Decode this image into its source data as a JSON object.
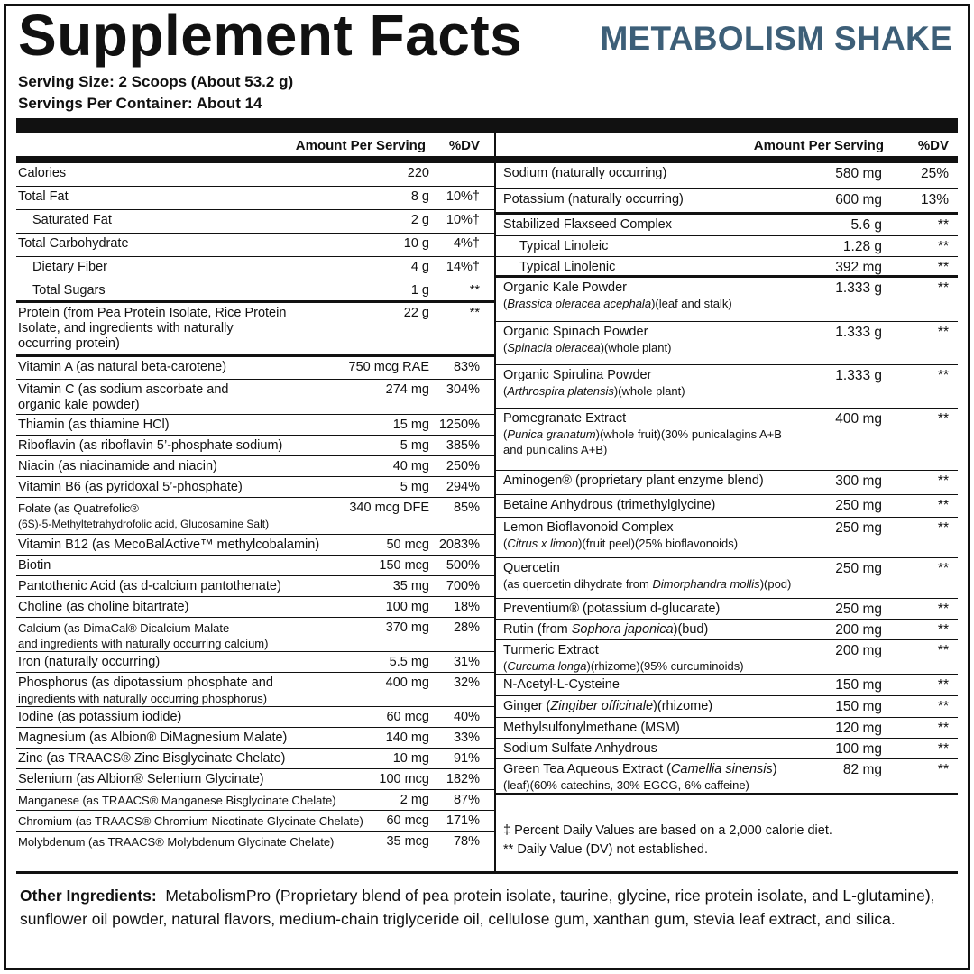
{
  "header": {
    "title": "Supplement Facts",
    "product": "METABOLISM SHAKE",
    "serving_size": "Serving Size: 2 Scoops (About 53.2 g)",
    "servings_per_container": "Servings Per Container: About 14"
  },
  "columns": {
    "amount": "Amount Per Serving",
    "dv": "%DV"
  },
  "left_rows": [
    {
      "name": "Calories",
      "amount": "220",
      "dv": ""
    },
    {
      "name": "Total Fat",
      "amount": "8 g",
      "dv": "10%†"
    },
    {
      "name": "Saturated Fat",
      "amount": "2 g",
      "dv": "10%†"
    },
    {
      "name": "Total Carbohydrate",
      "amount": "10 g",
      "dv": "4%†"
    },
    {
      "name": "Dietary Fiber",
      "amount": "4 g",
      "dv": "14%†"
    },
    {
      "name": "Total Sugars",
      "amount": "1 g",
      "dv": "**"
    },
    {
      "name": "Protein (from Pea Protein Isolate, Rice Protein",
      "name2": "Isolate, and ingredients with naturally",
      "name3": "occurring protein)",
      "amount": "22 g",
      "dv": "**"
    },
    {
      "name": "Vitamin A (as natural beta-carotene)",
      "amount": "750 mcg RAE",
      "dv": "83%"
    },
    {
      "name": "Vitamin C (as sodium ascorbate and",
      "name2": "organic kale powder)",
      "amount": "274 mg",
      "dv": "304%"
    },
    {
      "name": "Thiamin (as thiamine HCl)",
      "amount": "15 mg",
      "dv": "1250%"
    },
    {
      "name": "Riboflavin (as riboflavin 5’-phosphate sodium)",
      "amount": "5 mg",
      "dv": "385%"
    },
    {
      "name": "Niacin (as niacinamide and niacin)",
      "amount": "40 mg",
      "dv": "250%"
    },
    {
      "name": "Vitamin B6 (as pyridoxal 5’-phosphate)",
      "amount": "5 mg",
      "dv": "294%"
    },
    {
      "name": "Folate (as Quatrefolic®",
      "name2": "(6S)-5-Methyltetrahydrofolic acid, Glucosamine Salt)",
      "amount": "340 mcg DFE",
      "dv": "85%"
    },
    {
      "name": "Vitamin B12 (as MecoBalActive™ methylcobalamin)",
      "amount": "50 mcg",
      "dv": "2083%"
    },
    {
      "name": "Biotin",
      "amount": "150 mcg",
      "dv": "500%"
    },
    {
      "name": "Pantothenic Acid (as d-calcium pantothenate)",
      "amount": "35 mg",
      "dv": "700%"
    },
    {
      "name": "Choline (as choline bitartrate)",
      "amount": "100 mg",
      "dv": "18%"
    },
    {
      "name": "Calcium (as DimaCal® Dicalcium Malate",
      "name2": "and ingredients with naturally occurring calcium)",
      "amount": "370 mg",
      "dv": "28%"
    },
    {
      "name": "Iron (naturally occurring)",
      "amount": "5.5 mg",
      "dv": "31%"
    },
    {
      "name": "Phosphorus (as dipotassium phosphate and",
      "name2": "ingredients with naturally occurring phosphorus)",
      "amount": "400 mg",
      "dv": "32%"
    },
    {
      "name": "Iodine (as potassium iodide)",
      "amount": "60 mcg",
      "dv": "40%"
    },
    {
      "name": "Magnesium (as Albion® DiMagnesium Malate)",
      "amount": "140 mg",
      "dv": "33%"
    },
    {
      "name": "Zinc (as TRAACS® Zinc Bisglycinate Chelate)",
      "amount": "10 mg",
      "dv": "91%"
    },
    {
      "name": "Selenium (as Albion® Selenium Glycinate)",
      "amount": "100 mcg",
      "dv": "182%"
    },
    {
      "name": "Manganese (as TRAACS® Manganese Bisglycinate Chelate)",
      "amount": "2 mg",
      "dv": "87%"
    },
    {
      "name": "Chromium (as TRAACS® Chromium Nicotinate Glycinate Chelate)",
      "amount": "60 mcg",
      "dv": "171%"
    },
    {
      "name": "Molybdenum (as TRAACS® Molybdenum Glycinate Chelate)",
      "amount": "35 mcg",
      "dv": "78%"
    }
  ],
  "right_rows": [
    {
      "name": "Sodium (naturally occurring)",
      "amount": "580 mg",
      "dv": "25%"
    },
    {
      "name": "Potassium (naturally occurring)",
      "amount": "600 mg",
      "dv": "13%"
    },
    {
      "name": "Stabilized Flaxseed Complex",
      "amount": "5.6 g",
      "dv": "**"
    },
    {
      "name": "Typical Linoleic",
      "amount": "1.28 g",
      "dv": "**"
    },
    {
      "name": "Typical Linolenic",
      "amount": "392 mg",
      "dv": "**"
    },
    {
      "name": "Organic Kale Powder",
      "sub_i": "Brassica oleracea acephala",
      "sub_pre": "(",
      "sub_post": ")(leaf and stalk)",
      "amount": "1.333 g",
      "dv": "**"
    },
    {
      "name": "Organic Spinach Powder",
      "sub_i": "Spinacia oleracea",
      "sub_pre": "(",
      "sub_post": ")(whole plant)",
      "amount": "1.333 g",
      "dv": "**"
    },
    {
      "name": "Organic Spirulina Powder",
      "sub_i": "Arthrospira platensis",
      "sub_pre": "(",
      "sub_post": ")(whole plant)",
      "amount": "1.333 g",
      "dv": "**"
    },
    {
      "name": "Pomegranate Extract",
      "sub_i": "Punica granatum",
      "sub_pre": "(",
      "sub_post": ")(whole fruit)(30% punicalagins A+B",
      "sub2": "and punicalins A+B)",
      "amount": "400 mg",
      "dv": "**"
    },
    {
      "name": "Aminogen® (proprietary plant enzyme blend)",
      "amount": "300 mg",
      "dv": "**"
    },
    {
      "name": "Betaine Anhydrous (trimethylglycine)",
      "amount": "250 mg",
      "dv": "**"
    },
    {
      "name": "Lemon Bioflavonoid Complex",
      "sub_i": "Citrus x limon",
      "sub_pre": "(",
      "sub_post": ")(fruit peel)(25% bioflavonoids)",
      "amount": "250 mg",
      "dv": "**"
    },
    {
      "name": "Quercetin",
      "sub_pre": "(as quercetin dihydrate from ",
      "sub_i": "Dimorphandra mollis",
      "sub_post": ")(pod)",
      "amount": "250 mg",
      "dv": "**"
    },
    {
      "name": "Preventium® (potassium d-glucarate)",
      "amount": "250 mg",
      "dv": "**"
    },
    {
      "name": "Rutin (from ",
      "name_i": "Sophora japonica",
      "name_post": ")(bud)",
      "amount": "200 mg",
      "dv": "**"
    },
    {
      "name": "Turmeric Extract",
      "sub_i": "Curcuma longa",
      "sub_pre": "(",
      "sub_post": ")(rhizome)(95% curcuminoids)",
      "amount": "200 mg",
      "dv": "**"
    },
    {
      "name": "N-Acetyl-L-Cysteine",
      "amount": "150 mg",
      "dv": "**"
    },
    {
      "name": "Ginger (",
      "name_i": "Zingiber officinale",
      "name_post": ")(rhizome)",
      "amount": "150 mg",
      "dv": "**"
    },
    {
      "name": "Methylsulfonylmethane (MSM)",
      "amount": "120 mg",
      "dv": "**"
    },
    {
      "name": "Sodium Sulfate Anhydrous",
      "amount": "100 mg",
      "dv": "**"
    },
    {
      "name": "Green Tea Aqueous Extract (",
      "name_i": "Camellia sinensis",
      "name_post": ")",
      "sub_pre": "(leaf)(60% catechins, 30% EGCG, 6% caffeine)",
      "amount": "82 mg",
      "dv": "**"
    }
  ],
  "footnotes": {
    "dv_note": "‡ Percent Daily Values are based on a 2,000 calorie diet.",
    "not_established": "** Daily Value (DV) not established."
  },
  "other_ingredients": {
    "label": "Other Ingredients:",
    "text": "MetabolismPro (Proprietary blend of pea protein isolate, taurine, glycine, rice protein isolate, and L-glutamine), sunflower oil powder, natural flavors, medium-chain triglyceride oil, cellulose gum, xanthan gum, stevia leaf extract, and silica."
  },
  "colors": {
    "accent": "#3d5f78",
    "ink": "#111111"
  }
}
